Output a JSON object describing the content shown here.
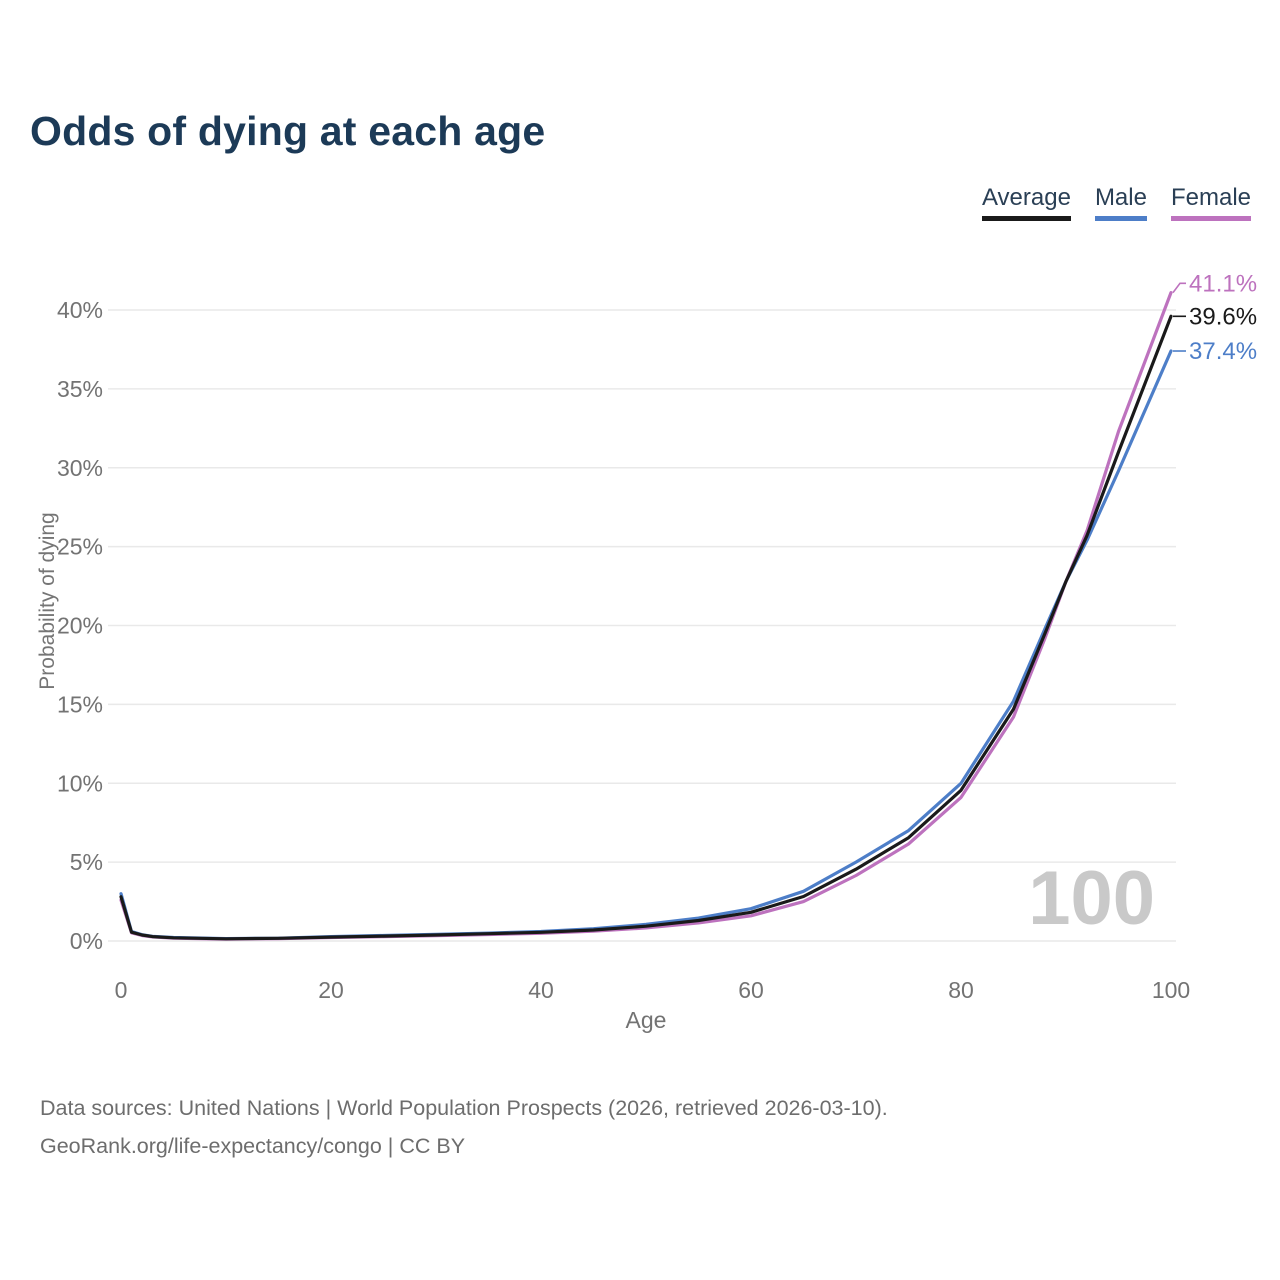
{
  "header": {
    "title": "Odds of dying at each age"
  },
  "legend": {
    "items": [
      {
        "label": "Average",
        "color": "#1a1a1a"
      },
      {
        "label": "Male",
        "color": "#4d7ec8"
      },
      {
        "label": "Female",
        "color": "#bd72be"
      }
    ]
  },
  "chart_data": {
    "type": "line",
    "title": "Odds of dying at each age",
    "xlabel": "Age",
    "ylabel": "Probability of dying",
    "xlim": [
      0,
      100
    ],
    "ylim": [
      0,
      40
    ],
    "x_ticks": [
      0,
      20,
      40,
      60,
      80,
      100
    ],
    "y_ticks": [
      0,
      5,
      10,
      15,
      20,
      25,
      30,
      35,
      40
    ],
    "y_tick_suffix": "%",
    "grid": "horizontal",
    "legend_position": "top-right",
    "watermark": "100",
    "x": [
      0,
      1,
      2,
      3,
      5,
      10,
      15,
      20,
      25,
      30,
      35,
      40,
      45,
      50,
      55,
      60,
      65,
      70,
      75,
      80,
      85,
      88,
      90,
      92,
      95,
      100
    ],
    "series": [
      {
        "name": "Average",
        "color": "#1a1a1a",
        "end_label": "39.6%",
        "values": [
          2.8,
          0.56,
          0.38,
          0.28,
          0.2,
          0.14,
          0.17,
          0.25,
          0.31,
          0.38,
          0.46,
          0.55,
          0.7,
          0.94,
          1.3,
          1.82,
          2.82,
          4.55,
          6.55,
          9.55,
          14.7,
          19.5,
          22.8,
          25.7,
          31.0,
          39.6
        ]
      },
      {
        "name": "Male",
        "color": "#4d7ec8",
        "end_label": "37.4%",
        "values": [
          3.0,
          0.6,
          0.4,
          0.3,
          0.22,
          0.15,
          0.18,
          0.28,
          0.35,
          0.42,
          0.5,
          0.6,
          0.78,
          1.05,
          1.45,
          2.05,
          3.15,
          5.0,
          7.0,
          10.0,
          15.2,
          19.8,
          22.8,
          25.4,
          29.8,
          37.4
        ]
      },
      {
        "name": "Female",
        "color": "#bd72be",
        "end_label": "41.1%",
        "values": [
          2.6,
          0.52,
          0.35,
          0.26,
          0.18,
          0.12,
          0.15,
          0.22,
          0.28,
          0.34,
          0.41,
          0.49,
          0.62,
          0.83,
          1.15,
          1.6,
          2.5,
          4.15,
          6.15,
          9.1,
          14.2,
          19.2,
          22.8,
          26.0,
          32.3,
          41.1
        ]
      }
    ]
  },
  "footer": {
    "line1": "Data sources: United Nations | World Population Prospects (2026, retrieved 2026-03-10).",
    "line2": "GeoRank.org/life-expectancy/congo | CC BY"
  }
}
